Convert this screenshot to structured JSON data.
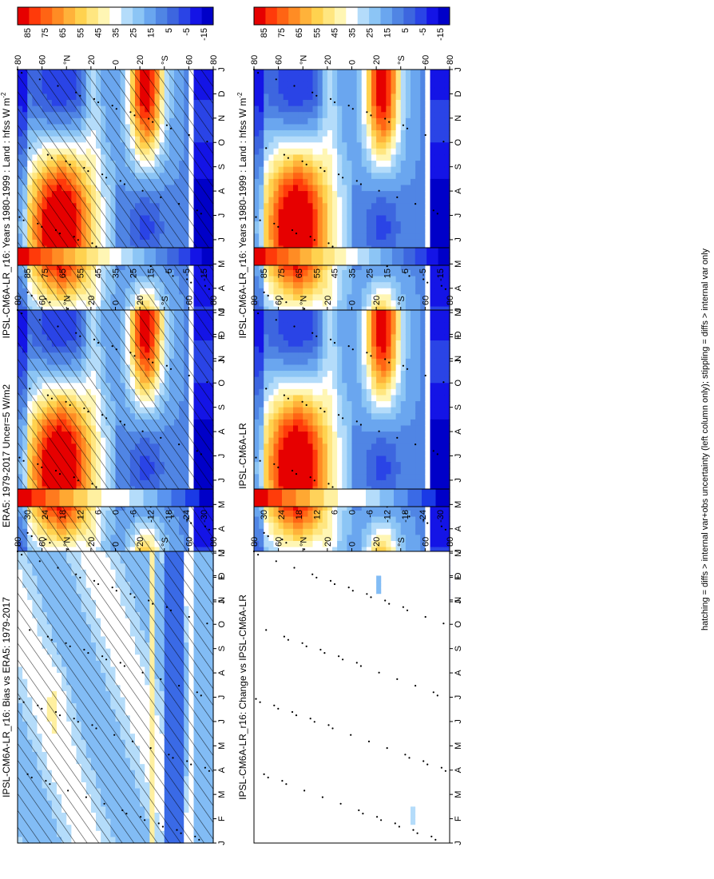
{
  "figure": {
    "footer": "hatching = diffs > internal var+obs uncertainty (left column only); stippling = diffs > internal var only"
  },
  "colormaps": {
    "abs": [
      "#0000c8",
      "#1414e6",
      "#2a44e6",
      "#3d66df",
      "#5085e4",
      "#6aa6ef",
      "#8cc5f5",
      "#b4dcfa",
      "#ffffff",
      "#fff6b4",
      "#ffe680",
      "#ffd24f",
      "#ffb23a",
      "#ff8c24",
      "#ff6414",
      "#ff3a0a",
      "#e60000"
    ],
    "diff": [
      "#0000c8",
      "#1a3ae6",
      "#3a6ae6",
      "#5a94ef",
      "#82bcf5",
      "#b4dcfa",
      "#ffffff",
      "#ffffff",
      "#fff0a0",
      "#ffd25a",
      "#ffa832",
      "#ff7a1e",
      "#ff3c0a",
      "#e60000"
    ]
  },
  "chart_data": [
    {
      "panel": "row1-left",
      "type": "heatmap",
      "title": "IPSL-CM6A-LR_r16: Years 1980-1999 : Land : hfss W m",
      "title_superscript": "-2",
      "x": [
        "J",
        "F",
        "M",
        "A",
        "M",
        "J",
        "J",
        "A",
        "S",
        "O",
        "N",
        "D",
        "J"
      ],
      "y_ticks": [
        "80",
        "60",
        "°N",
        "20",
        "0",
        "20",
        "°S",
        "60",
        "80"
      ],
      "colorbar": [
        "85",
        "75",
        "65",
        "55",
        "45",
        "35",
        "25",
        "15",
        "5",
        "-5",
        "-15"
      ],
      "cmap": "abs",
      "field": "abs",
      "hatch": true,
      "stipple": true
    },
    {
      "panel": "row1-right",
      "type": "heatmap",
      "title": "IPSL-CM6A-LR_r16: Years 1980-1999 : Land : hfss W m",
      "title_superscript": "-2",
      "x": [
        "J",
        "F",
        "M",
        "A",
        "M",
        "J",
        "J",
        "A",
        "S",
        "O",
        "N",
        "D",
        "J"
      ],
      "y_ticks": [
        "80",
        "60",
        "°N",
        "20",
        "0",
        "20",
        "°S",
        "60",
        "80"
      ],
      "colorbar": [
        "85",
        "75",
        "65",
        "55",
        "45",
        "35",
        "25",
        "15",
        "5",
        "-5",
        "-15"
      ],
      "cmap": "abs",
      "field": "abs",
      "hatch": false,
      "stipple": true
    },
    {
      "panel": "row2-left",
      "type": "heatmap",
      "title": "ERA5: 1979-2017 Uncer=5 W/m2",
      "title_superscript": "",
      "x": [
        "J",
        "F",
        "M",
        "A",
        "M",
        "J",
        "J",
        "A",
        "S",
        "O",
        "N",
        "D",
        "J"
      ],
      "y_ticks": [
        "80",
        "60",
        "°N",
        "20",
        "0",
        "20",
        "°S",
        "60",
        "80"
      ],
      "colorbar": [
        "85",
        "75",
        "65",
        "55",
        "45",
        "35",
        "25",
        "15",
        "5",
        "-5",
        "-15"
      ],
      "cmap": "abs",
      "field": "abs",
      "hatch": true,
      "stipple": true
    },
    {
      "panel": "row2-right",
      "type": "heatmap",
      "title": "IPSL-CM6A-LR",
      "title_superscript": "",
      "x": [
        "J",
        "F",
        "M",
        "A",
        "M",
        "J",
        "J",
        "A",
        "S",
        "O",
        "N",
        "D",
        "J"
      ],
      "y_ticks": [
        "80",
        "60",
        "°N",
        "20",
        "0",
        "20",
        "°S",
        "60",
        "80"
      ],
      "colorbar": [
        "85",
        "75",
        "65",
        "55",
        "45",
        "35",
        "25",
        "15",
        "5",
        "-5",
        "-15"
      ],
      "cmap": "abs",
      "field": "abs",
      "hatch": false,
      "stipple": true
    },
    {
      "panel": "row3-left",
      "type": "heatmap",
      "title": "IPSL-CM6A-LR_r16: Bias vs ERA5: 1979-2017",
      "title_superscript": "",
      "x": [
        "J",
        "F",
        "M",
        "A",
        "M",
        "J",
        "J",
        "A",
        "S",
        "O",
        "N",
        "D",
        "J"
      ],
      "y_ticks": [
        "80",
        "60",
        "°N",
        "20",
        "0",
        "20",
        "°S",
        "60",
        "80"
      ],
      "colorbar": [
        "30",
        "24",
        "18",
        "12",
        "6",
        "0",
        "-6",
        "-12",
        "-18",
        "-24",
        "-30"
      ],
      "cmap": "diff",
      "field": "bias",
      "hatch": true,
      "stipple": true
    },
    {
      "panel": "row3-right",
      "type": "heatmap",
      "title": "IPSL-CM6A-LR_r16: Change vs IPSL-CM6A-LR",
      "title_superscript": "",
      "x": [
        "J",
        "F",
        "M",
        "A",
        "M",
        "J",
        "J",
        "A",
        "S",
        "O",
        "N",
        "D",
        "J"
      ],
      "y_ticks": [
        "80",
        "60",
        "°N",
        "20",
        "0",
        "20",
        "°S",
        "60",
        "80"
      ],
      "colorbar": [
        "30",
        "24",
        "18",
        "12",
        "6",
        "0",
        "-6",
        "-12",
        "-18",
        "-24",
        "-30"
      ],
      "cmap": "diff",
      "field": "change",
      "hatch": false,
      "stipple": true
    }
  ]
}
